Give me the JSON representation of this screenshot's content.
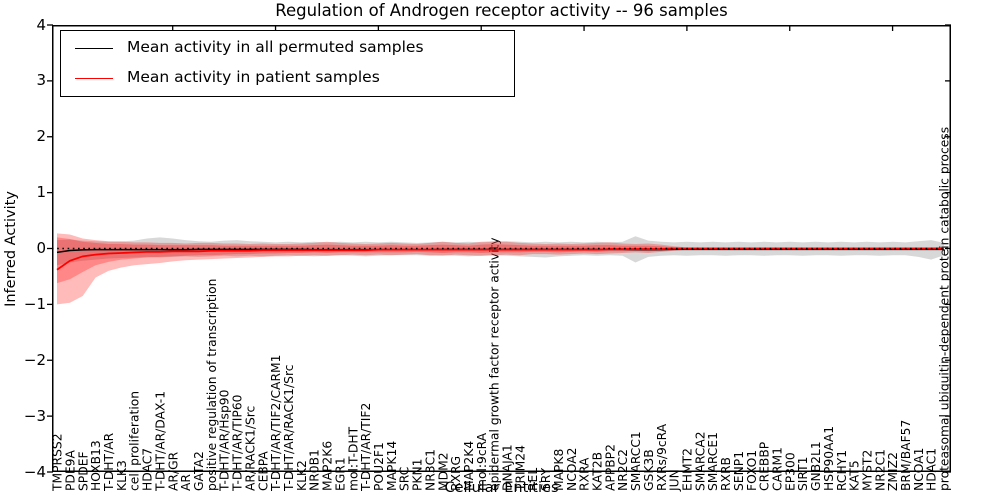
{
  "title": "Regulation of Androgen receptor activity -- 96 samples",
  "axes": {
    "ylabel": "Inferred Activity",
    "xlabel": "Cellular Entities"
  },
  "legend": {
    "entries": [
      {
        "label": "Mean activity in all permuted samples",
        "color": "#000000"
      },
      {
        "label": "Mean activity in patient samples",
        "color": "#ff0000"
      }
    ]
  },
  "colors": {
    "patient_line": "#ff0000",
    "permuted_line": "#000000",
    "patient_band": "rgba(255,0,0,0.27)",
    "permuted_band": "rgba(125,125,125,0.30)",
    "axis": "#000000"
  },
  "chart_data": {
    "type": "line",
    "title": "Regulation of Androgen receptor activity -- 96 samples",
    "xlabel": "Cellular Entities",
    "ylabel": "Inferred Activity",
    "ylim": [
      -4,
      4
    ],
    "ytick_values": [
      4,
      3,
      2,
      1,
      0,
      -1,
      -2,
      -3,
      -4
    ],
    "ytick_labels": [
      "4",
      "3",
      "2",
      "1",
      "0",
      "−1",
      "−2",
      "−3",
      "−4"
    ],
    "grid": false,
    "legend_position": "upper left",
    "zero_line": 0,
    "top_tick_indices": [
      9,
      17,
      25,
      33,
      41,
      49,
      57,
      65
    ],
    "categories": [
      "TMPRSS2",
      "PDE9A",
      "SPDEF",
      "HOXB13",
      "T-DHT/AR",
      "KLK3",
      "cell proliferation",
      "HDAC7",
      "T-DHT/AR/DAX-1",
      "AR/GR",
      "AR",
      "GATA2",
      "positive regulation of transcription",
      "T-DHT/AR/Hsp90",
      "T-DHT/AR/TIP60",
      "AR/RACK1/Src",
      "CEBPA",
      "T-DHT/AR/TIF2/CARM1",
      "T-DHT/AR/RACK1/Src",
      "KLK2",
      "NR0B1",
      "MAP2K6",
      "EGR1",
      "mol:T-DHT",
      "T-DHT/AR/TIF2",
      "POU2F1",
      "MAPK14",
      "SRC",
      "PKN1",
      "NR3C1",
      "MDM2",
      "RXRG",
      "MAP2K4",
      "mol:9cRA",
      "epidermal growth factor receptor activity",
      "DNAJA1",
      "TRIM24",
      "REL",
      "SRY",
      "MAPK8",
      "NCOA2",
      "RXRA",
      "KAT2B",
      "APPBP2",
      "NR2C2",
      "SMARCC1",
      "GSK3B",
      "RXRs/9cRA",
      "JUN",
      "EHMT2",
      "SMARCA2",
      "SMARCE1",
      "RXRB",
      "SENP1",
      "FOXO1",
      "CREBBP",
      "CARM1",
      "EP300",
      "SIRT1",
      "GNB2L1",
      "HSP90AA1",
      "RCHY1",
      "KAT5",
      "MYST2",
      "NR2C1",
      "ZMIZ2",
      "BRM/BAF57",
      "NCOA1",
      "HDAC1",
      "proteasomal ubiquitin-dependent protein catabolic process"
    ],
    "series": [
      {
        "name": "Mean activity in all permuted samples",
        "color": "#000000",
        "values": [
          -0.07,
          -0.035,
          -0.025,
          -0.02,
          -0.02,
          -0.02,
          -0.02,
          -0.02,
          -0.02,
          -0.02,
          -0.02,
          -0.015,
          -0.015,
          -0.015,
          -0.015,
          -0.015,
          -0.015,
          -0.015,
          -0.015,
          -0.015,
          -0.02,
          -0.02,
          -0.02,
          -0.02,
          -0.02,
          -0.02,
          -0.02,
          -0.02,
          -0.02,
          -0.02,
          -0.015,
          -0.015,
          -0.015,
          -0.015,
          -0.015,
          -0.015,
          -0.015,
          -0.015,
          -0.015,
          -0.015,
          -0.015,
          -0.015,
          -0.015,
          -0.015,
          -0.015,
          -0.02,
          -0.02,
          -0.02,
          -0.015,
          -0.015,
          -0.015,
          -0.015,
          -0.015,
          -0.015,
          -0.015,
          -0.015,
          -0.015,
          -0.015,
          -0.015,
          -0.015,
          -0.015,
          -0.015,
          -0.015,
          -0.015,
          -0.015,
          -0.015,
          -0.015,
          -0.015,
          -0.015,
          -0.015
        ]
      },
      {
        "name": "Mean activity in patient samples",
        "color": "#ff0000",
        "values": [
          -0.38,
          -0.22,
          -0.14,
          -0.11,
          -0.09,
          -0.08,
          -0.07,
          -0.06,
          -0.06,
          -0.05,
          -0.05,
          -0.05,
          -0.04,
          -0.04,
          -0.04,
          -0.04,
          -0.03,
          -0.03,
          -0.03,
          -0.03,
          -0.03,
          -0.03,
          -0.03,
          -0.03,
          -0.03,
          -0.02,
          -0.02,
          -0.02,
          -0.02,
          -0.02,
          -0.02,
          -0.02,
          -0.02,
          -0.02,
          -0.02,
          -0.02,
          -0.02,
          -0.02,
          -0.02,
          -0.02,
          -0.02,
          -0.02,
          -0.02,
          -0.01,
          -0.01,
          -0.01,
          -0.01,
          -0.01,
          0.0,
          0.0,
          0.0,
          0.0,
          0.0,
          0.0,
          0.0,
          0.0,
          0.0,
          0.0,
          0.0,
          0.0,
          0.0,
          0.0,
          0.0,
          0.0,
          0.0,
          0.0,
          0.0,
          0.0,
          0.0,
          0.0
        ]
      }
    ],
    "bands": [
      {
        "name": "permuted-samples-range",
        "color": "rgba(125,125,125,0.30)",
        "hi": [
          0.15,
          0.16,
          0.14,
          0.13,
          0.12,
          0.13,
          0.14,
          0.18,
          0.2,
          0.18,
          0.15,
          0.13,
          0.12,
          0.14,
          0.15,
          0.13,
          0.12,
          0.11,
          0.12,
          0.11,
          0.12,
          0.11,
          0.12,
          0.11,
          0.12,
          0.11,
          0.12,
          0.11,
          0.1,
          0.11,
          0.12,
          0.11,
          0.12,
          0.11,
          0.12,
          0.13,
          0.12,
          0.11,
          0.12,
          0.11,
          0.12,
          0.11,
          0.12,
          0.11,
          0.12,
          0.22,
          0.14,
          0.12,
          0.11,
          0.12,
          0.11,
          0.12,
          0.11,
          0.12,
          0.11,
          0.12,
          0.11,
          0.12,
          0.11,
          0.12,
          0.11,
          0.12,
          0.11,
          0.12,
          0.11,
          0.12,
          0.11,
          0.13,
          0.15,
          0.1
        ],
        "lo": [
          -0.3,
          -0.25,
          -0.22,
          -0.2,
          -0.18,
          -0.17,
          -0.16,
          -0.15,
          -0.16,
          -0.15,
          -0.14,
          -0.15,
          -0.14,
          -0.13,
          -0.14,
          -0.13,
          -0.14,
          -0.13,
          -0.12,
          -0.13,
          -0.14,
          -0.13,
          -0.12,
          -0.13,
          -0.14,
          -0.13,
          -0.12,
          -0.12,
          -0.12,
          -0.13,
          -0.12,
          -0.13,
          -0.14,
          -0.13,
          -0.12,
          -0.13,
          -0.14,
          -0.15,
          -0.16,
          -0.14,
          -0.13,
          -0.12,
          -0.13,
          -0.12,
          -0.13,
          -0.25,
          -0.15,
          -0.13,
          -0.12,
          -0.13,
          -0.12,
          -0.12,
          -0.13,
          -0.12,
          -0.12,
          -0.13,
          -0.12,
          -0.12,
          -0.13,
          -0.12,
          -0.12,
          -0.13,
          -0.12,
          -0.12,
          -0.13,
          -0.12,
          -0.12,
          -0.15,
          -0.2,
          -0.12
        ]
      },
      {
        "name": "patient-samples-range-outer",
        "color": "rgba(255,0,0,0.27)",
        "hi": [
          0.27,
          0.25,
          0.18,
          0.15,
          0.13,
          0.12,
          0.11,
          0.11,
          0.1,
          0.1,
          0.09,
          0.1,
          0.1,
          0.09,
          0.09,
          0.08,
          0.09,
          0.08,
          0.08,
          0.09,
          0.1,
          0.12,
          0.1,
          0.09,
          0.08,
          0.09,
          0.1,
          0.09,
          0.08,
          0.1,
          0.12,
          0.1,
          0.09,
          0.12,
          0.13,
          0.12,
          0.1,
          0.09,
          0.08,
          0.09,
          0.08,
          0.09,
          0.1,
          0.11,
          0.09,
          0.08,
          0.09,
          0.07,
          0.04,
          0.02,
          0.02,
          0.02,
          0.02,
          0.02,
          0.02,
          0.02,
          0.02,
          0.02,
          0.02,
          0.02,
          0.02,
          0.02,
          0.02,
          0.02,
          0.02,
          0.02,
          0.02,
          0.02,
          0.02,
          0.03
        ],
        "lo": [
          -1.0,
          -0.97,
          -0.85,
          -0.52,
          -0.4,
          -0.34,
          -0.3,
          -0.28,
          -0.26,
          -0.23,
          -0.21,
          -0.2,
          -0.19,
          -0.18,
          -0.17,
          -0.16,
          -0.15,
          -0.14,
          -0.14,
          -0.13,
          -0.12,
          -0.13,
          -0.12,
          -0.11,
          -0.12,
          -0.11,
          -0.12,
          -0.11,
          -0.1,
          -0.12,
          -0.13,
          -0.11,
          -0.12,
          -0.13,
          -0.12,
          -0.11,
          -0.12,
          -0.1,
          -0.1,
          -0.11,
          -0.1,
          -0.09,
          -0.1,
          -0.09,
          -0.08,
          -0.07,
          -0.08,
          -0.06,
          -0.04,
          -0.02,
          -0.02,
          -0.02,
          -0.02,
          -0.02,
          -0.02,
          -0.02,
          -0.02,
          -0.02,
          -0.02,
          -0.02,
          -0.02,
          -0.02,
          -0.02,
          -0.02,
          -0.02,
          -0.02,
          -0.02,
          -0.02,
          -0.02,
          -0.03
        ],
        "legend": false
      },
      {
        "name": "patient-samples-range-inner",
        "color": "rgba(255,0,0,0.27)",
        "hi": [
          0.2,
          0.17,
          0.12,
          0.1,
          0.08,
          0.08,
          0.07,
          0.07,
          0.06,
          0.06,
          0.06,
          0.06,
          0.06,
          0.05,
          0.05,
          0.05,
          0.05,
          0.05,
          0.05,
          0.05,
          0.06,
          0.07,
          0.06,
          0.05,
          0.05,
          0.05,
          0.06,
          0.05,
          0.05,
          0.06,
          0.07,
          0.06,
          0.05,
          0.07,
          0.08,
          0.07,
          0.06,
          0.05,
          0.05,
          0.05,
          0.05,
          0.05,
          0.06,
          0.06,
          0.05,
          0.05,
          0.05,
          0.04,
          0.02,
          0.01,
          0.01,
          0.01,
          0.01,
          0.01,
          0.01,
          0.01,
          0.01,
          0.01,
          0.01,
          0.01,
          0.01,
          0.01,
          0.01,
          0.01,
          0.01,
          0.01,
          0.01,
          0.01,
          0.01,
          0.015
        ],
        "lo": [
          -0.62,
          -0.55,
          -0.42,
          -0.3,
          -0.24,
          -0.2,
          -0.18,
          -0.16,
          -0.15,
          -0.14,
          -0.13,
          -0.12,
          -0.12,
          -0.11,
          -0.1,
          -0.1,
          -0.09,
          -0.09,
          -0.08,
          -0.08,
          -0.07,
          -0.08,
          -0.07,
          -0.07,
          -0.07,
          -0.07,
          -0.07,
          -0.07,
          -0.06,
          -0.07,
          -0.08,
          -0.07,
          -0.07,
          -0.08,
          -0.07,
          -0.07,
          -0.07,
          -0.06,
          -0.06,
          -0.07,
          -0.06,
          -0.05,
          -0.06,
          -0.05,
          -0.05,
          -0.04,
          -0.05,
          -0.04,
          -0.02,
          -0.01,
          -0.01,
          -0.01,
          -0.01,
          -0.01,
          -0.01,
          -0.01,
          -0.01,
          -0.01,
          -0.01,
          -0.01,
          -0.01,
          -0.01,
          -0.01,
          -0.01,
          -0.01,
          -0.01,
          -0.01,
          -0.01,
          -0.01,
          -0.015
        ],
        "legend": false
      }
    ]
  }
}
